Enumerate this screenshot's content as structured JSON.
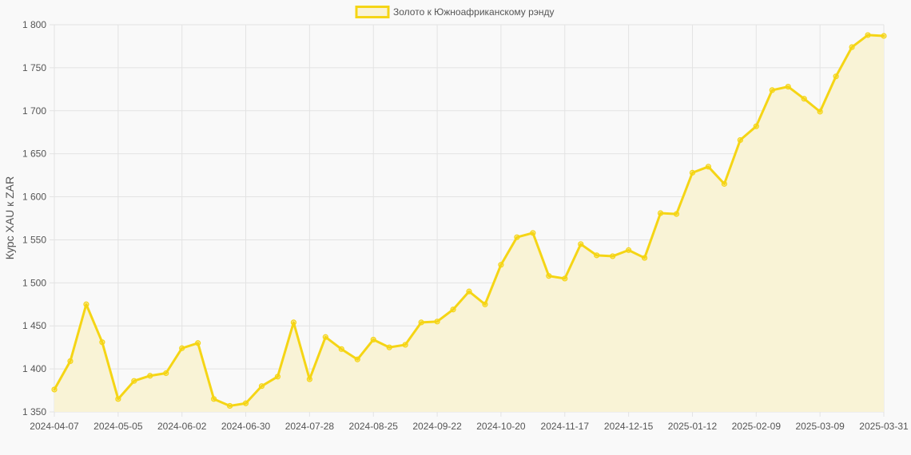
{
  "chart_data": {
    "type": "area",
    "title": "",
    "xlabel": "",
    "ylabel": "Курс XAU к ZAR",
    "ylim": [
      1350,
      1800
    ],
    "yticks": [
      1350,
      1400,
      1450,
      1500,
      1550,
      1600,
      1650,
      1700,
      1750,
      1800
    ],
    "ytick_labels": [
      "1 350",
      "1 400",
      "1 450",
      "1 500",
      "1 550",
      "1 600",
      "1 650",
      "1 700",
      "1 750",
      "1 800"
    ],
    "xtick_labels": [
      "2024-04-07",
      "2024-05-05",
      "2024-06-02",
      "2024-06-30",
      "2024-07-28",
      "2024-08-25",
      "2024-09-22",
      "2024-10-20",
      "2024-11-17",
      "2024-12-15",
      "2025-01-12",
      "2025-02-09",
      "2025-03-09",
      "2025-03-31"
    ],
    "xtick_positions": [
      0,
      4,
      8,
      12,
      16,
      20,
      24,
      28,
      32,
      36,
      40,
      44,
      48,
      52
    ],
    "grid": true,
    "legend_position": "top-center",
    "colors": {
      "line": "#f5d515",
      "fill": "#f9f3d6",
      "grid": "#e3e3e3",
      "background": "#f9f9f9"
    },
    "series": [
      {
        "name": "Золото к Южноафриканскому рэнду",
        "values": [
          1376,
          1409,
          1475,
          1431,
          1365,
          1386,
          1392,
          1395,
          1424,
          1430,
          1365,
          1357,
          1360,
          1380,
          1391,
          1454,
          1388,
          1437,
          1423,
          1411,
          1434,
          1425,
          1428,
          1454,
          1455,
          1469,
          1490,
          1475,
          1521,
          1553,
          1558,
          1508,
          1505,
          1545,
          1532,
          1531,
          1538,
          1529,
          1581,
          1580,
          1628,
          1635,
          1615,
          1666,
          1682,
          1724,
          1728,
          1714,
          1699,
          1740,
          1774,
          1788,
          1787
        ]
      }
    ]
  }
}
